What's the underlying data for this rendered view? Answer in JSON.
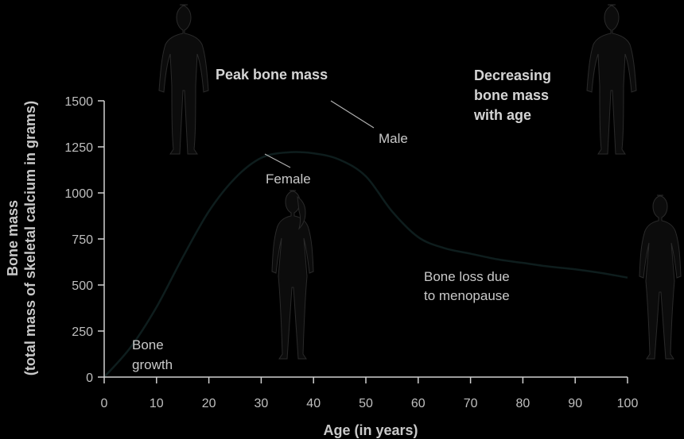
{
  "chart_data": {
    "type": "line",
    "title": "",
    "xlabel": "Age (in years)",
    "ylabel_line1": "Bone mass",
    "ylabel_line2": "(total mass of skeletal calcium in grams)",
    "xlim": [
      0,
      100
    ],
    "ylim": [
      0,
      1500
    ],
    "x_ticks": [
      0,
      10,
      20,
      30,
      40,
      50,
      60,
      70,
      80,
      90,
      100
    ],
    "y_ticks": [
      0,
      250,
      500,
      750,
      1000,
      1250,
      1500
    ],
    "grid": false,
    "series": [
      {
        "x": [
          0,
          5,
          10,
          15,
          20,
          25,
          30,
          35,
          40,
          45,
          50,
          55,
          60,
          65,
          70,
          75,
          80,
          85,
          90,
          95,
          100
        ],
        "y": [
          0,
          160,
          380,
          650,
          900,
          1080,
          1190,
          1220,
          1215,
          1180,
          1090,
          900,
          760,
          700,
          670,
          640,
          620,
          600,
          585,
          565,
          540
        ],
        "color": "#0e1d1d"
      }
    ],
    "annotations": {
      "peak": "Peak bone mass",
      "male": "Male",
      "female": "Female",
      "decreasing_1": "Decreasing",
      "decreasing_2": "bone mass",
      "decreasing_3": "with age",
      "bone_loss_1": "Bone loss due",
      "bone_loss_2": "to menopause",
      "growth_1": "Bone",
      "growth_2": "growth"
    }
  },
  "figures": [
    "male-silhouette-young",
    "female-silhouette-young",
    "male-silhouette-old",
    "female-silhouette-old"
  ]
}
